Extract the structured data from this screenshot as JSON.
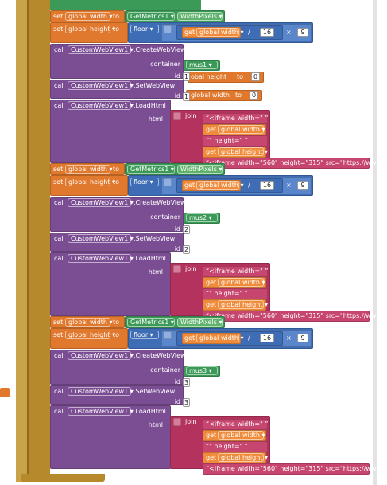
{
  "groups": [
    {
      "set_width": {
        "set": "set",
        "var": "global width",
        "to": "to",
        "component": "GetMetrics1",
        "property": "WidthPixels"
      },
      "set_height": {
        "set": "set",
        "var": "global height",
        "to": "to",
        "floor": "floor",
        "get": "get",
        "var_ref": "global width",
        "op": "/",
        "divisor": 16,
        "times": "×",
        "multiplier": 9
      },
      "create": {
        "call": "call",
        "component": "CustomWebView1",
        "method": ".CreateWebView",
        "container_label": "container",
        "container": "mus1",
        "id_label": "id",
        "id": 1
      },
      "overlap_create": {
        "var": "obal height",
        "to": "to",
        "value": 0
      },
      "set_view": {
        "call": "call",
        "component": "CustomWebView1",
        "method": ".SetWebView",
        "id_label": "id",
        "id": 1
      },
      "overlap_view": {
        "var": "global width",
        "to": "to",
        "value": 0
      },
      "load": {
        "call": "call",
        "component": "CustomWebView1",
        "method": ".LoadHtml",
        "html_label": "html",
        "join": "join",
        "parts": [
          {
            "text": "<iframe width=\""
          },
          {
            "get": "get",
            "var": "global width"
          },
          {
            "text": "\" height=\""
          },
          {
            "get": "get",
            "var": "global height"
          },
          {
            "text": "<iframe width=\"560\" height=\"315\" src=\"https://ww..."
          }
        ]
      }
    },
    {
      "set_width": {
        "set": "set",
        "var": "global width",
        "to": "to",
        "component": "GetMetrics1",
        "property": "WidthPixels"
      },
      "set_height": {
        "set": "set",
        "var": "global height",
        "to": "to",
        "floor": "floor",
        "get": "get",
        "var_ref": "global width",
        "op": "/",
        "divisor": 16,
        "times": "×",
        "multiplier": 9
      },
      "create": {
        "call": "call",
        "component": "CustomWebView1",
        "method": ".CreateWebView",
        "container_label": "container",
        "container": "mus2",
        "id_label": "id",
        "id": 2
      },
      "set_view": {
        "call": "call",
        "component": "CustomWebView1",
        "method": ".SetWebView",
        "id_label": "id",
        "id": 2
      },
      "load": {
        "call": "call",
        "component": "CustomWebView1",
        "method": ".LoadHtml",
        "html_label": "html",
        "join": "join",
        "parts": [
          {
            "text": "<iframe width=\""
          },
          {
            "get": "get",
            "var": "global width"
          },
          {
            "text": "\" height=\""
          },
          {
            "get": "get",
            "var": "global height"
          },
          {
            "text": "<iframe width=\"560\" height=\"315\" src=\"https://ww..."
          }
        ]
      }
    },
    {
      "set_width": {
        "set": "set",
        "var": "global width",
        "to": "to",
        "component": "GetMetrics1",
        "property": "WidthPixels"
      },
      "set_height": {
        "set": "set",
        "var": "global height",
        "to": "to",
        "floor": "floor",
        "get": "get",
        "var_ref": "global width",
        "op": "/",
        "divisor": 16,
        "times": "×",
        "multiplier": 9
      },
      "create": {
        "call": "call",
        "component": "CustomWebView1",
        "method": ".CreateWebView",
        "container_label": "container",
        "container": "mus3",
        "id_label": "id",
        "id": 3
      },
      "set_view": {
        "call": "call",
        "component": "CustomWebView1",
        "method": ".SetWebView",
        "id_label": "id",
        "id": 3
      },
      "load": {
        "call": "call",
        "component": "CustomWebView1",
        "method": ".LoadHtml",
        "html_label": "html",
        "join": "join",
        "parts": [
          {
            "text": "<iframe width=\""
          },
          {
            "get": "get",
            "var": "global width"
          },
          {
            "text": "\" height=\""
          },
          {
            "get": "get",
            "var": "global height"
          },
          {
            "text": "<iframe width=\"560\" height=\"315\" src=\"https://ww..."
          }
        ]
      }
    }
  ]
}
